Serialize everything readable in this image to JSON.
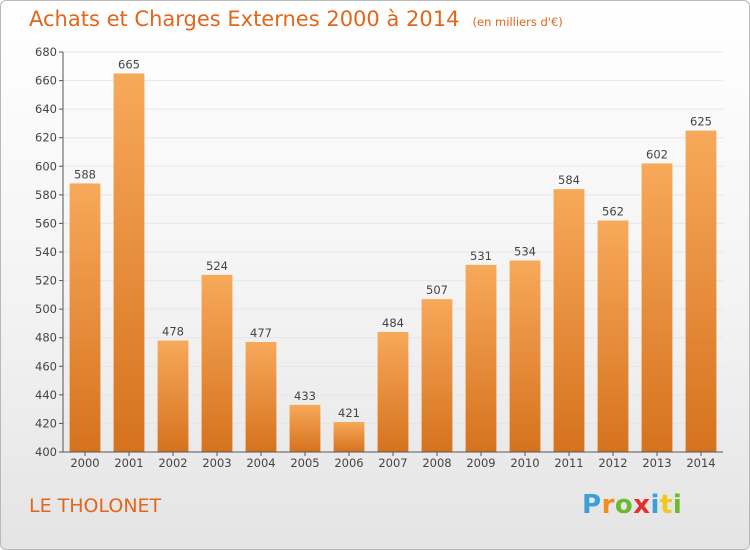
{
  "title": "Achats et Charges Externes 2000 à 2014",
  "subtitle": "(en milliers d'€)",
  "commune": "LE THOLONET",
  "logo": {
    "letters": [
      "P",
      "r",
      "o",
      "x",
      "i",
      "t",
      "i"
    ],
    "colors": [
      "#3aa0d8",
      "#f28c1c",
      "#6cb92f",
      "#e52f2f",
      "#3aa0d8",
      "#f2c81c",
      "#6cb92f"
    ]
  },
  "chart_data": {
    "type": "bar",
    "categories": [
      "2000",
      "2001",
      "2002",
      "2003",
      "2004",
      "2005",
      "2006",
      "2007",
      "2008",
      "2009",
      "2010",
      "2011",
      "2012",
      "2013",
      "2014"
    ],
    "values": [
      588,
      665,
      478,
      524,
      477,
      433,
      421,
      484,
      507,
      531,
      534,
      584,
      562,
      602,
      625
    ],
    "ylim": [
      400,
      680
    ],
    "yticks": [
      400,
      420,
      440,
      460,
      480,
      500,
      520,
      540,
      560,
      580,
      600,
      620,
      640,
      660,
      680
    ],
    "grid": true,
    "colors": {
      "bar_top": "#f7a95a",
      "bar_bottom": "#d6721e",
      "grid": "#e6e6e6",
      "axis": "#555555",
      "text": "#444444"
    }
  }
}
